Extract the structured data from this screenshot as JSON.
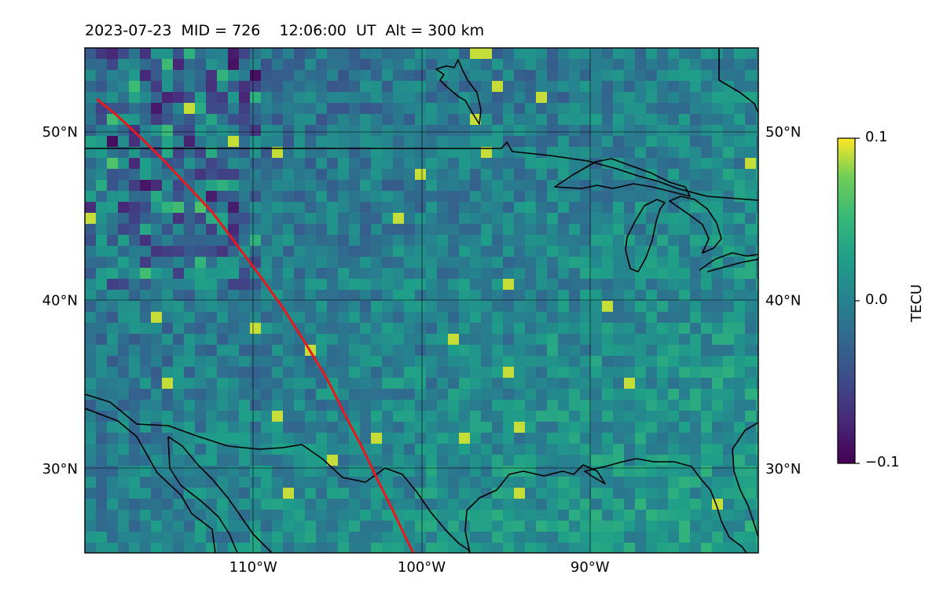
{
  "title": "2023-07-23  MID = 726    12:06:00  UT  Alt = 300 km",
  "map": {
    "lon_range": [
      -120,
      -80
    ],
    "lat_range": [
      25,
      55
    ],
    "lat_grid": [
      30,
      40,
      50
    ],
    "lon_grid": [
      -110,
      -100,
      -90
    ],
    "lat_labels": {
      "30": "30°N",
      "40": "40°N",
      "50": "50°N"
    },
    "lon_labels": {
      "-110": "110°W",
      "-100": "100°W",
      "-90": "90°W"
    },
    "track_color": "#e41a1c",
    "coast_color": "#000000"
  },
  "colorbar": {
    "label": "TECU",
    "ticks": [
      "0.1",
      "0.0",
      "−0.1"
    ],
    "range": [
      -0.1,
      0.1
    ],
    "colormap": "viridis"
  }
}
